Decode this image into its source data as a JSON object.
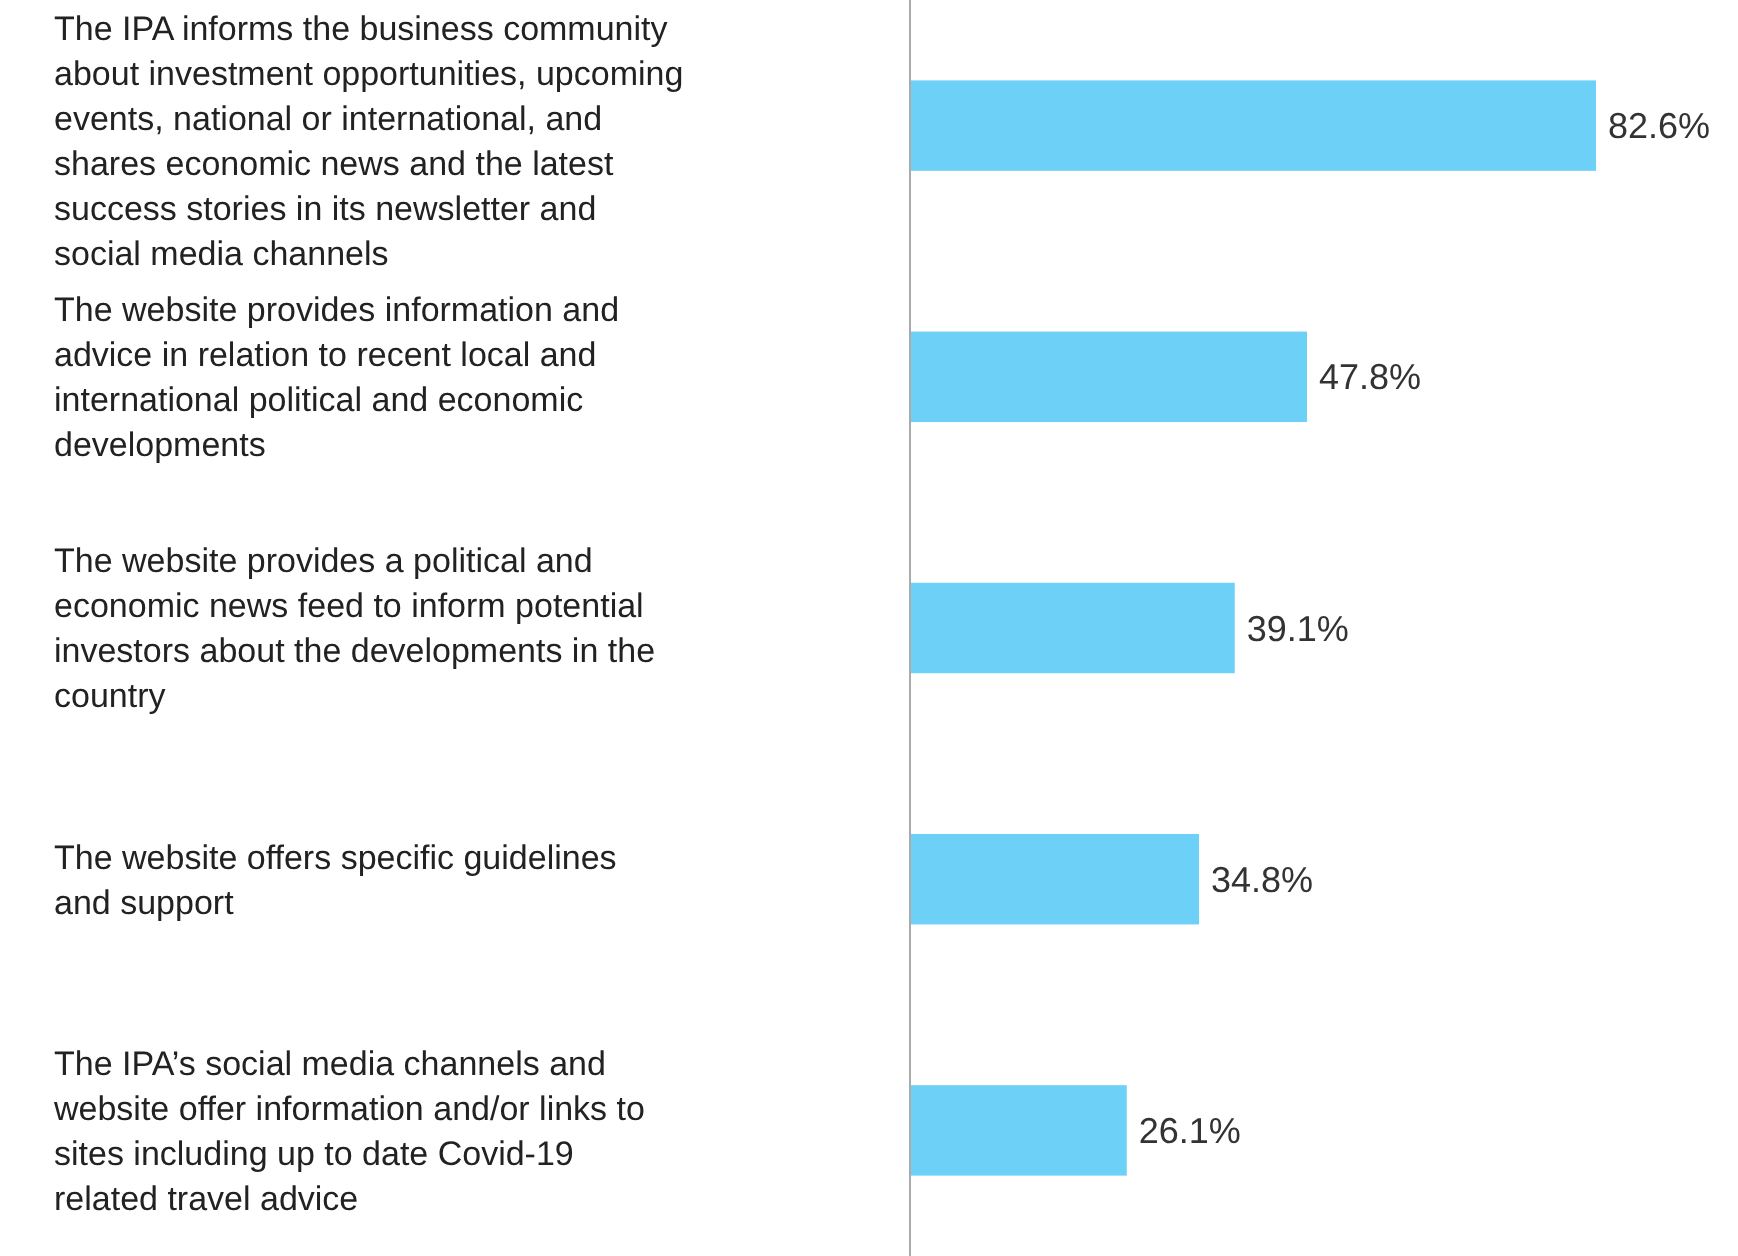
{
  "chart_data": {
    "type": "bar",
    "orientation": "horizontal",
    "value_labels": [
      "82.6%",
      "47.8%",
      "39.1%",
      "34.8%",
      "26.1%"
    ],
    "color": "#6dd0f6",
    "categories": [
      "The IPA informs the business community about investment opportunities, upcoming events, national or international, and shares economic news and the latest success stories in its newsletter and social media channels",
      "The website provides information and advice in relation to recent local and international political and economic developments",
      "The website provides a political and economic news feed to inform potential investors about the developments in the country",
      "The website offers specific guidelines and support",
      "The IPA’s social media channels and website offer information and/or links to sites including up to date  Covid-19 related travel advice"
    ],
    "values": [
      82.6,
      47.8,
      39.1,
      34.8,
      26.1
    ]
  }
}
